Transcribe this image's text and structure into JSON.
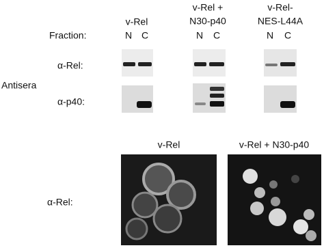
{
  "top": {
    "columns": [
      {
        "title": [
          "v-Rel"
        ],
        "lanes": [
          "N",
          "C"
        ]
      },
      {
        "title": [
          "v-Rel +",
          "N30-p40"
        ],
        "lanes": [
          "N",
          "C"
        ]
      },
      {
        "title": [
          "v-Rel-",
          "NES-L44A"
        ],
        "lanes": [
          "N",
          "C"
        ]
      }
    ],
    "fraction_label": "Fraction:",
    "antisera_label": "Antisera",
    "rows": [
      "α-Rel:",
      "α-p40:"
    ]
  },
  "bottom": {
    "columns": [
      "v-Rel",
      "v-Rel + N30-p40"
    ],
    "row_label": "α-Rel:"
  }
}
